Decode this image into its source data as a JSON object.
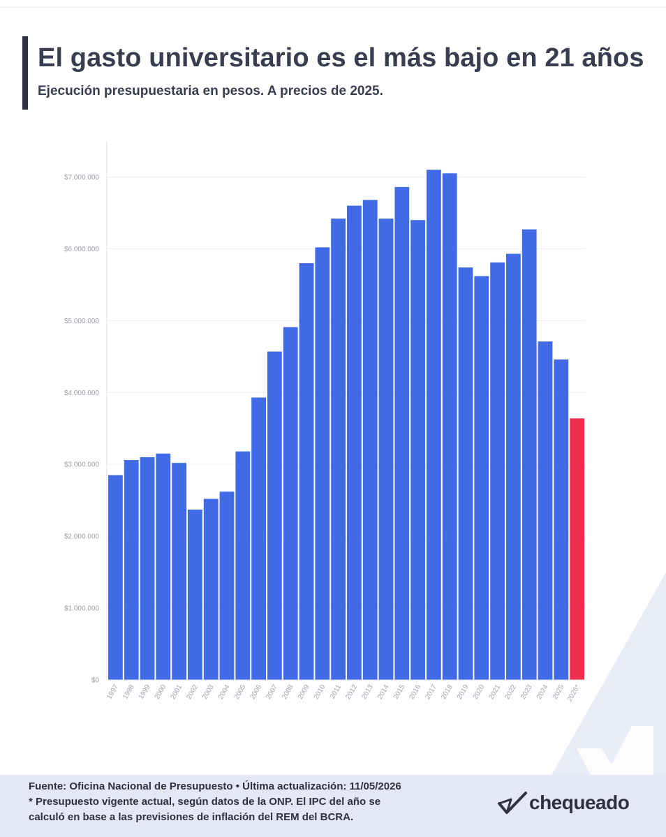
{
  "header": {
    "title": "El gasto universitario es el más bajo en 21 años",
    "subtitle": "Ejecución presupuestaria en pesos. A precios de 2025."
  },
  "chart_data": {
    "type": "bar",
    "categories": [
      "1997",
      "1998",
      "1999",
      "2000",
      "2001",
      "2002",
      "2003",
      "2004",
      "2005",
      "2006",
      "2007",
      "2008",
      "2009",
      "2010",
      "2011",
      "2012",
      "2013",
      "2014",
      "2015",
      "2016",
      "2017",
      "2018",
      "2019",
      "2020",
      "2021",
      "2022",
      "2023",
      "2024",
      "2025",
      "2026*"
    ],
    "values": [
      2850000,
      3060000,
      3100000,
      3150000,
      3020000,
      2370000,
      2520000,
      2620000,
      3180000,
      3930000,
      4570000,
      4910000,
      5800000,
      6020000,
      6420000,
      6600000,
      6680000,
      6420000,
      6860000,
      6400000,
      7100000,
      7050000,
      5740000,
      5620000,
      5810000,
      5930000,
      6270000,
      4710000,
      4460000,
      3640000
    ],
    "highlight_index": 29,
    "ylim": [
      0,
      7500000
    ],
    "yticks": [
      0,
      1000000,
      2000000,
      3000000,
      4000000,
      5000000,
      6000000,
      7000000
    ],
    "ytick_labels": [
      "$0",
      "$1.000.000",
      "$2.000.000",
      "$3.000.000",
      "$4.000.000",
      "$5.000.000",
      "$6.000.000",
      "$7.000.000"
    ],
    "grid": true,
    "legend": "none",
    "colors": {
      "bar": "#416be6",
      "highlight": "#ee2f52",
      "grid": "#eeeeee",
      "axis": "#e2e2e2"
    }
  },
  "footer": {
    "source": "Fuente: Oficina Nacional de Presupuesto • Última actualización: 11/05/2026",
    "note_line1": "* Presupuesto vigente actual, según datos de la ONP. El IPC del año se",
    "note_line2": "calculó en base a las previsiones de inflación del REM del BCRA."
  },
  "brand": {
    "name": "chequeado",
    "icon": "check-logo-icon",
    "color": "#2d3142"
  }
}
